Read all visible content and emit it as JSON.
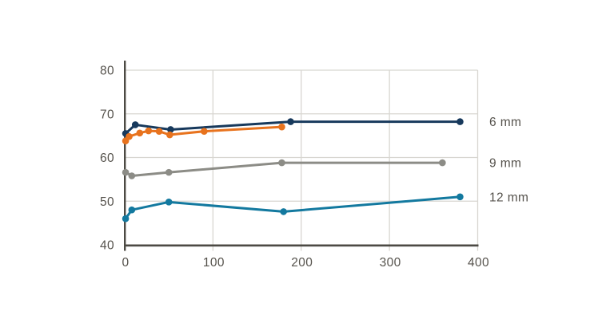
{
  "chart_data": {
    "type": "line",
    "title": "",
    "xlabel": "",
    "ylabel": "",
    "xlim": [
      0,
      400
    ],
    "ylim": [
      40,
      80
    ],
    "x_ticks": [
      0,
      100,
      200,
      300,
      400
    ],
    "x_tick_labels": [
      "0",
      "100",
      "200",
      "300",
      "400"
    ],
    "y_ticks": [
      40,
      50,
      60,
      70,
      80
    ],
    "y_tick_labels": [
      "40",
      "50",
      "60",
      "70",
      "80"
    ],
    "grid": true,
    "legend_position": "right-of-line-ends",
    "series": [
      {
        "name": "6 mm",
        "label": "6 mm",
        "color": "#17395c",
        "points": [
          [
            1,
            65.5
          ],
          [
            12,
            67.5
          ],
          [
            52,
            66.4
          ],
          [
            188,
            68.2
          ],
          [
            380,
            68.2
          ]
        ]
      },
      {
        "name": "unlabeled orange series",
        "label": "",
        "color": "#e8731e",
        "points": [
          [
            1,
            63.8
          ],
          [
            5,
            64.8
          ],
          [
            17,
            65.6
          ],
          [
            27,
            66.1
          ],
          [
            39,
            66.0
          ],
          [
            51,
            65.2
          ],
          [
            90,
            66.0
          ],
          [
            178,
            67.0
          ]
        ]
      },
      {
        "name": "9 mm",
        "label": "9 mm",
        "color": "#8c8c86",
        "points": [
          [
            1,
            56.6
          ],
          [
            8,
            55.8
          ],
          [
            50,
            56.6
          ],
          [
            178,
            58.8
          ],
          [
            360,
            58.8
          ]
        ]
      },
      {
        "name": "12 mm",
        "label": "12 mm",
        "color": "#13799f",
        "points": [
          [
            1,
            46.0
          ],
          [
            8,
            48.0
          ],
          [
            50,
            49.8
          ],
          [
            180,
            47.6
          ],
          [
            380,
            51.0
          ]
        ]
      }
    ],
    "style": {
      "grid_color": "#d8d6d1",
      "axis_color": "#4c4a44",
      "label_color": "#55524c",
      "background": "#ffffff",
      "line_width": 3,
      "marker_radius": 4.3
    }
  }
}
